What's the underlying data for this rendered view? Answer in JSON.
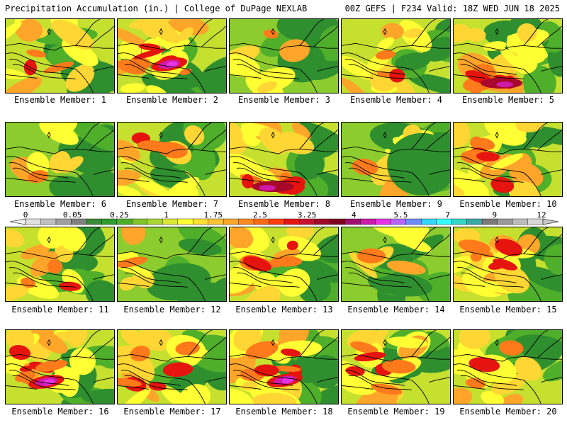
{
  "header": {
    "title": "Precipitation Accumulation (in.) | College of DuPage NEXLAB",
    "run_info": "00Z GEFS | F234 Valid: 18Z WED JUN 18 2025"
  },
  "members": [
    {
      "label": "Ensemble Member: 1",
      "intensity": "moderate"
    },
    {
      "label": "Ensemble Member: 2",
      "intensity": "heavy-band"
    },
    {
      "label": "Ensemble Member: 3",
      "intensity": "light"
    },
    {
      "label": "Ensemble Member: 4",
      "intensity": "moderate"
    },
    {
      "label": "Ensemble Member: 5",
      "intensity": "heavy-south"
    },
    {
      "label": "Ensemble Member: 6",
      "intensity": "light"
    },
    {
      "label": "Ensemble Member: 7",
      "intensity": "moderate"
    },
    {
      "label": "Ensemble Member: 8",
      "intensity": "heavy-south"
    },
    {
      "label": "Ensemble Member: 9",
      "intensity": "light-east"
    },
    {
      "label": "Ensemble Member: 10",
      "intensity": "heavy"
    },
    {
      "label": "Ensemble Member: 11",
      "intensity": "moderate"
    },
    {
      "label": "Ensemble Member: 12",
      "intensity": "light"
    },
    {
      "label": "Ensemble Member: 13",
      "intensity": "heavy"
    },
    {
      "label": "Ensemble Member: 14",
      "intensity": "light"
    },
    {
      "label": "Ensemble Member: 15",
      "intensity": "heavy"
    },
    {
      "label": "Ensemble Member: 16",
      "intensity": "heavy-band"
    },
    {
      "label": "Ensemble Member: 17",
      "intensity": "heavy"
    },
    {
      "label": "Ensemble Member: 18",
      "intensity": "heavy-band"
    },
    {
      "label": "Ensemble Member: 19",
      "intensity": "heavy"
    },
    {
      "label": "Ensemble Member: 20",
      "intensity": "moderate"
    }
  ],
  "colorbar": {
    "unit": "in.",
    "tick_labels": [
      "0",
      "0.05",
      "0.25",
      "1",
      "1.75",
      "2.5",
      "3.25",
      "4",
      "5.5",
      "7",
      "9",
      "12"
    ],
    "colors": [
      "#e0e0e0",
      "#c0c0c0",
      "#a0a0a0",
      "#808080",
      "#3a8a3a",
      "#2e9c2e",
      "#4caf2a",
      "#7fc42a",
      "#a8d633",
      "#d9e832",
      "#ffff33",
      "#ffe033",
      "#ffc433",
      "#ffa52a",
      "#ff8a1f",
      "#ff6a14",
      "#ff3d0f",
      "#e6140f",
      "#c8102e",
      "#a0082a",
      "#800020",
      "#a0106e",
      "#cc1aa8",
      "#e633e6",
      "#b566ff",
      "#6f8cff",
      "#33d6ff",
      "#33ffff",
      "#33d6c8",
      "#3aa8a8",
      "#7a7a7a",
      "#9a9a9a",
      "#bdbdbd",
      "#d8d8d8"
    ]
  }
}
